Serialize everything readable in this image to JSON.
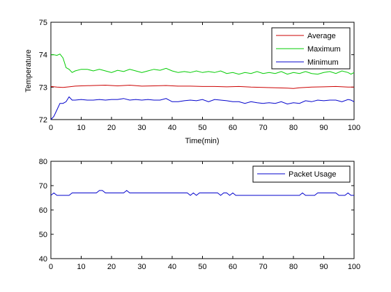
{
  "chart_data": [
    {
      "type": "line",
      "xlabel": "Time(min)",
      "ylabel": "Temperature",
      "xlim": [
        0,
        100
      ],
      "ylim": [
        72,
        75
      ],
      "xticks": [
        0,
        10,
        20,
        30,
        40,
        50,
        60,
        70,
        80,
        90,
        100
      ],
      "yticks": [
        72,
        73,
        74,
        75
      ],
      "grid": false,
      "legend_position": "top-right",
      "series": [
        {
          "name": "Average",
          "color": "#cc0000",
          "x": [
            0,
            2,
            4,
            6,
            8,
            10,
            14,
            18,
            22,
            26,
            30,
            34,
            38,
            42,
            46,
            50,
            54,
            58,
            62,
            66,
            70,
            74,
            78,
            80,
            82,
            86,
            90,
            94,
            98,
            100
          ],
          "y": [
            73.02,
            73.0,
            72.99,
            73.01,
            73.03,
            73.04,
            73.05,
            73.06,
            73.04,
            73.06,
            73.03,
            73.04,
            73.05,
            73.03,
            73.03,
            73.02,
            73.02,
            73.01,
            73.02,
            73.0,
            72.99,
            72.98,
            72.97,
            72.96,
            72.98,
            73.0,
            73.01,
            73.02,
            73.0,
            73.0
          ]
        },
        {
          "name": "Maximum",
          "color": "#00cc00",
          "x": [
            0,
            1,
            2,
            3,
            4,
            5,
            6,
            7,
            8,
            10,
            12,
            14,
            16,
            18,
            20,
            22,
            24,
            26,
            28,
            30,
            32,
            34,
            36,
            38,
            40,
            42,
            44,
            46,
            48,
            50,
            52,
            54,
            56,
            58,
            60,
            62,
            64,
            66,
            68,
            70,
            72,
            74,
            76,
            78,
            80,
            82,
            84,
            86,
            88,
            90,
            92,
            94,
            96,
            98,
            99,
            100
          ],
          "y": [
            74.0,
            74.0,
            73.98,
            74.02,
            73.9,
            73.6,
            73.55,
            73.45,
            73.5,
            73.55,
            73.55,
            73.5,
            73.55,
            73.5,
            73.45,
            73.52,
            73.48,
            73.55,
            73.5,
            73.45,
            73.5,
            73.55,
            73.52,
            73.58,
            73.5,
            73.45,
            73.48,
            73.45,
            73.5,
            73.45,
            73.48,
            73.45,
            73.5,
            73.42,
            73.45,
            73.4,
            73.45,
            73.42,
            73.48,
            73.42,
            73.45,
            73.42,
            73.48,
            73.4,
            73.45,
            73.42,
            73.48,
            73.42,
            73.4,
            73.45,
            73.48,
            73.42,
            73.5,
            73.45,
            73.4,
            73.45
          ]
        },
        {
          "name": "Minimum",
          "color": "#0000cc",
          "x": [
            0,
            1,
            2,
            3,
            4,
            5,
            6,
            7,
            8,
            10,
            12,
            14,
            16,
            18,
            20,
            22,
            24,
            26,
            28,
            30,
            32,
            34,
            36,
            38,
            40,
            42,
            44,
            46,
            48,
            50,
            52,
            54,
            56,
            58,
            60,
            62,
            64,
            66,
            68,
            70,
            72,
            74,
            76,
            78,
            80,
            82,
            84,
            86,
            88,
            90,
            92,
            94,
            96,
            98,
            99,
            100
          ],
          "y": [
            72.0,
            72.1,
            72.3,
            72.5,
            72.5,
            72.55,
            72.7,
            72.6,
            72.6,
            72.62,
            72.6,
            72.6,
            72.62,
            72.6,
            72.62,
            72.62,
            72.65,
            72.6,
            72.62,
            72.6,
            72.62,
            72.6,
            72.6,
            72.65,
            72.55,
            72.55,
            72.58,
            72.6,
            72.58,
            72.62,
            72.55,
            72.62,
            72.6,
            72.58,
            72.55,
            72.55,
            72.5,
            72.55,
            72.52,
            72.5,
            72.52,
            72.5,
            72.55,
            72.48,
            72.52,
            72.5,
            72.58,
            72.55,
            72.6,
            72.58,
            72.6,
            72.6,
            72.55,
            72.62,
            72.6,
            72.55
          ]
        }
      ]
    },
    {
      "type": "line",
      "xlabel": "",
      "ylabel": "",
      "xlim": [
        0,
        100
      ],
      "ylim": [
        40,
        80
      ],
      "xticks": [
        0,
        10,
        20,
        30,
        40,
        50,
        60,
        70,
        80,
        90,
        100
      ],
      "yticks": [
        40,
        50,
        60,
        70,
        80
      ],
      "grid": false,
      "legend_position": "top-right",
      "series": [
        {
          "name": "Packet Usage",
          "color": "#0000cc",
          "x": [
            0,
            1,
            2,
            3,
            4,
            5,
            6,
            7,
            8,
            10,
            12,
            14,
            15,
            16,
            17,
            18,
            20,
            22,
            24,
            25,
            26,
            28,
            30,
            34,
            38,
            42,
            45,
            46,
            47,
            48,
            49,
            50,
            52,
            54,
            55,
            56,
            57,
            58,
            59,
            60,
            61,
            62,
            66,
            70,
            74,
            78,
            80,
            82,
            83,
            84,
            86,
            87,
            88,
            90,
            92,
            94,
            95,
            96,
            97,
            98,
            99,
            100
          ],
          "y": [
            66,
            67,
            66,
            66,
            66,
            66,
            66,
            67,
            67,
            67,
            67,
            67,
            67,
            68,
            68,
            67,
            67,
            67,
            67,
            68,
            67,
            67,
            67,
            67,
            67,
            67,
            67,
            66,
            67,
            66,
            67,
            67,
            67,
            67,
            67,
            66,
            67,
            67,
            66,
            67,
            66,
            66,
            66,
            66,
            66,
            66,
            66,
            66,
            67,
            66,
            66,
            66,
            67,
            67,
            67,
            67,
            66,
            66,
            66,
            67,
            66,
            66
          ]
        }
      ]
    }
  ]
}
